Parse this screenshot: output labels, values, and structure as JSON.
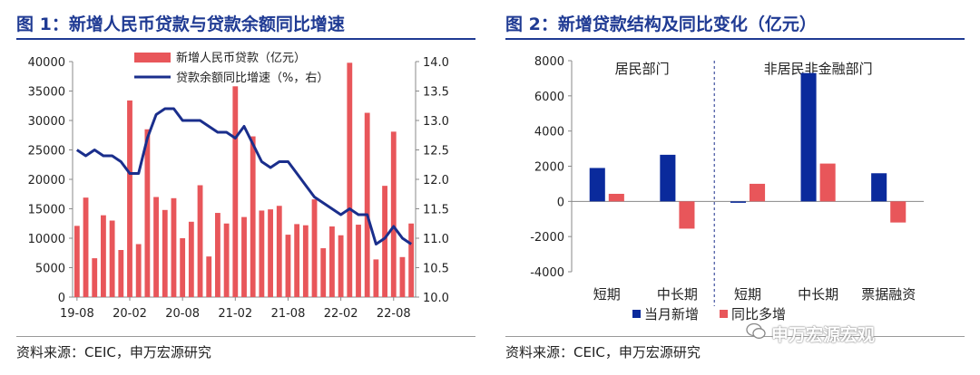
{
  "panel1": {
    "title": "图 1：新增人民币贷款与贷款余额同比增速",
    "source": "资料来源：CEIC，申万宏源研究"
  },
  "panel2": {
    "title": "图 2：新增贷款结构及同比变化（亿元）",
    "source": "资料来源：CEIC，申万宏源研究"
  },
  "watermark": "申万宏源宏观",
  "chart_data": [
    {
      "type": "bar+line",
      "left_axis": {
        "ylim": [
          0,
          40000
        ],
        "ticks": [
          "0",
          "5000",
          "10000",
          "15000",
          "20000",
          "25000",
          "30000",
          "35000",
          "40000"
        ]
      },
      "right_axis": {
        "ylim": [
          10.0,
          14.0
        ],
        "ticks": [
          "10.0",
          "10.5",
          "11.0",
          "11.5",
          "12.0",
          "12.5",
          "13.0",
          "13.5",
          "14.0"
        ]
      },
      "x_tick_labels": [
        "19-08",
        "20-02",
        "20-08",
        "21-02",
        "21-08",
        "22-02",
        "22-08"
      ],
      "legend": [
        "新增人民币贷款（亿元）",
        "贷款余额同比增速（%，右）"
      ],
      "legend_position": "top-center",
      "colors": {
        "bars": "#e8565a",
        "line": "#1a2e8c"
      },
      "series": [
        {
          "name": "新增人民币贷款（亿元）",
          "axis": "left",
          "values": [
            12100,
            16900,
            6600,
            13900,
            13000,
            8000,
            33400,
            9000,
            28500,
            17000,
            14800,
            16800,
            10000,
            12800,
            19000,
            6900,
            14300,
            12500,
            35800,
            13600,
            27300,
            14700,
            14900,
            15500,
            10600,
            12400,
            12200,
            16600,
            8300,
            12000,
            10500,
            39800,
            12300,
            31300,
            6400,
            18900,
            28100,
            6800,
            12500
          ]
        },
        {
          "name": "贷款余额同比增速（%，右）",
          "axis": "right",
          "values": [
            12.5,
            12.4,
            12.5,
            12.4,
            12.4,
            12.3,
            12.1,
            12.1,
            12.7,
            13.1,
            13.2,
            13.2,
            13.0,
            13.0,
            13.0,
            12.9,
            12.8,
            12.8,
            12.7,
            12.9,
            12.6,
            12.3,
            12.2,
            12.3,
            12.3,
            12.1,
            11.9,
            11.7,
            11.6,
            11.5,
            11.4,
            11.5,
            11.4,
            11.4,
            10.9,
            11.0,
            11.2,
            11.0,
            10.9
          ]
        }
      ]
    },
    {
      "type": "bar",
      "ylim": [
        -4000,
        8000
      ],
      "ticks": [
        "-4000",
        "-2000",
        "0",
        "2000",
        "4000",
        "6000",
        "8000"
      ],
      "group_labels": [
        "居民部门",
        "非居民非金融部门"
      ],
      "categories": [
        "短期",
        "中长期",
        "短期",
        "中长期",
        "票据融资"
      ],
      "legend": [
        "当月新增",
        "同比多增"
      ],
      "legend_position": "bottom",
      "colors": {
        "当月新增": "#0a2a9c",
        "同比多增": "#e8565a"
      },
      "series": [
        {
          "name": "当月新增",
          "values": [
            1900,
            2650,
            -80,
            7300,
            1600
          ]
        },
        {
          "name": "同比多增",
          "values": [
            430,
            -1550,
            1000,
            2150,
            -1200
          ]
        }
      ]
    }
  ]
}
